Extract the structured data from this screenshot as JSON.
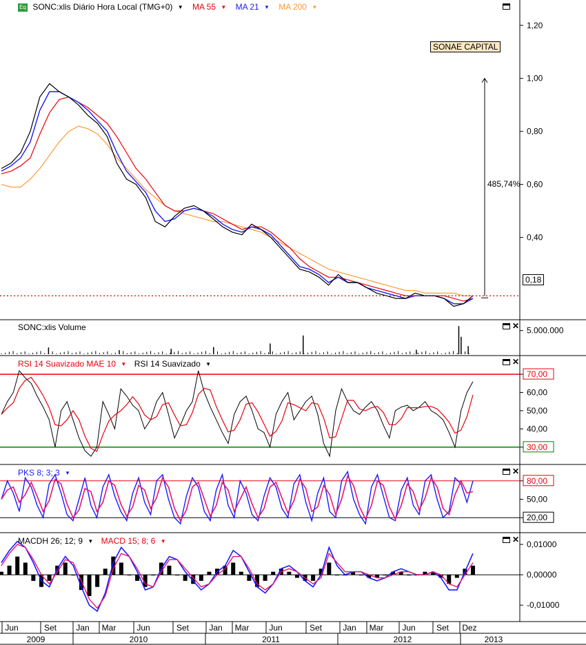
{
  "header": {
    "symbol_label": "SONC:xlis Diário Hora Local (TMG+0)",
    "ma55": "MA 55",
    "ma21": "MA 21",
    "ma200": "MA 200",
    "badge": "Eq"
  },
  "company_tag": "SONAE CAPITAL",
  "price_tag": "0,18",
  "change_label": "485,74%",
  "volume_legend": "SONC:xlis Volume",
  "rsi_legend_1": "RSI 14 Suavizado MAE 10",
  "rsi_legend_2": "RSI 14 Suavizado",
  "stoch_legend": "PKS 8; 3; 3",
  "macd_legend_1": "MACDH 26; 12; 9",
  "macd_legend_2": "MACD 15; 8; 6",
  "colors": {
    "price": "#000000",
    "ma55": "#e8000b",
    "ma21": "#1a1aff",
    "ma200": "#ff9933",
    "rsi_smooth": "#e8000b",
    "upper_line": "#e8000b",
    "lower_line": "#008000",
    "tag_bg": "#ffe9c4"
  },
  "chart_data": {
    "type": "line",
    "x_axis": {
      "months": [
        "Jun",
        "Set",
        "Jan",
        "Mar",
        "Jun",
        "Set",
        "Jan",
        "Mar",
        "Jun",
        "Set",
        "Jan",
        "Mar",
        "Jun",
        "Set",
        "Dez"
      ],
      "years": [
        "2009",
        "2010",
        "2011",
        "2012",
        "2013"
      ]
    },
    "price_panel": {
      "y_ticks": [
        "1,20",
        "1,00",
        "0,80",
        "0,60",
        "0,40"
      ],
      "ylim": [
        0.1,
        1.28
      ],
      "current": 0.18,
      "close": [
        0.66,
        0.68,
        0.72,
        0.8,
        0.93,
        0.98,
        0.95,
        0.93,
        0.9,
        0.86,
        0.83,
        0.78,
        0.68,
        0.62,
        0.6,
        0.55,
        0.46,
        0.44,
        0.48,
        0.51,
        0.52,
        0.5,
        0.47,
        0.44,
        0.42,
        0.41,
        0.45,
        0.43,
        0.4,
        0.36,
        0.32,
        0.28,
        0.27,
        0.25,
        0.22,
        0.26,
        0.23,
        0.23,
        0.21,
        0.19,
        0.18,
        0.17,
        0.17,
        0.19,
        0.18,
        0.18,
        0.17,
        0.14,
        0.15,
        0.18
      ],
      "ma21": [
        0.65,
        0.67,
        0.7,
        0.76,
        0.88,
        0.95,
        0.95,
        0.93,
        0.91,
        0.88,
        0.84,
        0.8,
        0.72,
        0.65,
        0.61,
        0.57,
        0.5,
        0.46,
        0.47,
        0.5,
        0.51,
        0.5,
        0.48,
        0.45,
        0.43,
        0.42,
        0.44,
        0.43,
        0.41,
        0.37,
        0.33,
        0.29,
        0.28,
        0.26,
        0.23,
        0.25,
        0.23,
        0.23,
        0.21,
        0.2,
        0.19,
        0.18,
        0.17,
        0.18,
        0.18,
        0.18,
        0.17,
        0.15,
        0.15,
        0.17
      ],
      "ma55": [
        0.64,
        0.65,
        0.67,
        0.7,
        0.79,
        0.87,
        0.92,
        0.93,
        0.91,
        0.89,
        0.86,
        0.83,
        0.78,
        0.72,
        0.66,
        0.62,
        0.57,
        0.52,
        0.5,
        0.5,
        0.51,
        0.5,
        0.49,
        0.47,
        0.45,
        0.43,
        0.44,
        0.44,
        0.42,
        0.39,
        0.36,
        0.32,
        0.29,
        0.27,
        0.25,
        0.25,
        0.24,
        0.23,
        0.22,
        0.21,
        0.2,
        0.19,
        0.18,
        0.18,
        0.18,
        0.18,
        0.18,
        0.17,
        0.16,
        0.17
      ],
      "ma200": [
        0.6,
        0.59,
        0.59,
        0.62,
        0.66,
        0.71,
        0.76,
        0.8,
        0.82,
        0.81,
        0.79,
        0.75,
        0.7,
        0.66,
        0.62,
        0.58,
        0.55,
        0.52,
        0.5,
        0.49,
        0.48,
        0.47,
        0.46,
        0.46,
        0.45,
        0.44,
        0.43,
        0.42,
        0.4,
        0.38,
        0.36,
        0.34,
        0.32,
        0.3,
        0.28,
        0.27,
        0.26,
        0.25,
        0.24,
        0.23,
        0.22,
        0.21,
        0.2,
        0.2,
        0.19,
        0.19,
        0.19,
        0.19,
        0.18,
        0.18
      ]
    },
    "volume_panel": {
      "y_ticks": [
        "5.000.000"
      ],
      "ylim": [
        0,
        6500000
      ],
      "spikes": [
        [
          0.1,
          1200000
        ],
        [
          0.25,
          600000
        ],
        [
          0.36,
          900000
        ],
        [
          0.45,
          1300000
        ],
        [
          0.57,
          2100000
        ],
        [
          0.64,
          3900000
        ],
        [
          0.88,
          700000
        ],
        [
          0.975,
          3600000
        ],
        [
          0.97,
          6000000
        ],
        [
          0.99,
          1500000
        ]
      ]
    },
    "rsi_panel": {
      "y_ticks": [
        "70,00",
        "60,00",
        "50,00",
        "40,00",
        "30,00"
      ],
      "ylim": [
        22,
        78
      ],
      "upper": 70,
      "lower": 30,
      "values": [
        48,
        55,
        60,
        72,
        68,
        65,
        58,
        52,
        45,
        30,
        50,
        55,
        45,
        35,
        28,
        25,
        30,
        55,
        48,
        40,
        62,
        58,
        53,
        50,
        40,
        45,
        55,
        60,
        48,
        35,
        42,
        50,
        55,
        72,
        60,
        52,
        45,
        38,
        32,
        48,
        55,
        58,
        50,
        40,
        38,
        30,
        48,
        55,
        60,
        45,
        50,
        55,
        58,
        48,
        32,
        25,
        50,
        62,
        55,
        50,
        48,
        52,
        55,
        50,
        42,
        35,
        50,
        52,
        53,
        50,
        52,
        55,
        50,
        48,
        45,
        38,
        30,
        50,
        60,
        66
      ]
    },
    "stoch_panel": {
      "y_ticks": [
        "80,00",
        "50,00",
        "20,00"
      ],
      "ylim": [
        0,
        100
      ],
      "upper": 80,
      "lower": 20,
      "values": [
        50,
        80,
        60,
        30,
        85,
        70,
        40,
        20,
        75,
        90,
        60,
        25,
        15,
        50,
        85,
        40,
        20,
        70,
        90,
        55,
        30,
        15,
        60,
        85,
        45,
        25,
        80,
        90,
        50,
        20,
        10,
        55,
        85,
        70,
        30,
        15,
        65,
        90,
        40,
        20,
        80,
        60,
        25,
        15,
        55,
        85,
        70,
        35,
        20,
        75,
        90,
        45,
        15,
        60,
        85,
        30,
        20,
        80,
        95,
        50,
        25,
        10,
        70,
        90,
        55,
        20,
        15,
        65,
        85,
        40,
        25,
        80,
        90,
        50,
        20,
        30,
        85,
        75,
        45,
        80
      ]
    },
    "macd_panel": {
      "y_ticks": [
        "0,01000",
        "0,00000",
        "-0,01000"
      ],
      "ylim": [
        -0.0145,
        0.0125
      ],
      "macd": [
        0.004,
        0.008,
        0.011,
        0.009,
        0.004,
        -0.002,
        -0.004,
        0.002,
        0.006,
        0.003,
        -0.004,
        -0.01,
        -0.012,
        -0.006,
        0.004,
        0.009,
        0.006,
        0.001,
        -0.005,
        -0.004,
        0.002,
        0.006,
        0.005,
        0.001,
        -0.002,
        -0.005,
        -0.003,
        0.001,
        0.003,
        0.008,
        0.006,
        0.001,
        -0.004,
        -0.006,
        -0.003,
        0.002,
        0.003,
        0.001,
        -0.002,
        -0.004,
        0.0,
        0.009,
        0.003,
        0.0,
        0.001,
        0.001,
        -0.001,
        -0.002,
        -0.001,
        0.001,
        0.002,
        0.001,
        0.0,
        0.0,
        0.001,
        -0.001,
        -0.005,
        -0.005,
        0.001,
        0.007
      ],
      "macd_slow": [
        0.003,
        0.007,
        0.01,
        0.009,
        0.005,
        0.0,
        -0.003,
        0.001,
        0.005,
        0.004,
        -0.002,
        -0.008,
        -0.011,
        -0.007,
        0.002,
        0.007,
        0.006,
        0.002,
        -0.003,
        -0.004,
        0.001,
        0.005,
        0.005,
        0.002,
        -0.001,
        -0.004,
        -0.003,
        0.0,
        0.002,
        0.006,
        0.006,
        0.002,
        -0.003,
        -0.005,
        -0.003,
        0.001,
        0.002,
        0.001,
        -0.001,
        -0.003,
        -0.001,
        0.007,
        0.004,
        0.001,
        0.001,
        0.001,
        0.0,
        -0.001,
        -0.001,
        0.0,
        0.001,
        0.001,
        0.0,
        0.0,
        0.001,
        0.0,
        -0.003,
        -0.004,
        0.0,
        0.004
      ],
      "hist": [
        0.001,
        0.003,
        0.006,
        0.004,
        -0.002,
        -0.004,
        -0.002,
        0.003,
        0.004,
        0.0,
        -0.005,
        -0.007,
        -0.004,
        0.002,
        0.006,
        0.004,
        0.0,
        -0.002,
        -0.004,
        0.0,
        0.004,
        0.003,
        0.0,
        -0.002,
        -0.003,
        -0.002,
        0.001,
        0.002,
        0.003,
        0.004,
        0.001,
        -0.002,
        -0.004,
        -0.002,
        0.001,
        0.002,
        0.001,
        -0.001,
        -0.002,
        -0.002,
        0.002,
        0.004,
        0.0,
        0.0,
        0.001,
        0.0,
        -0.001,
        -0.001,
        0.0,
        0.001,
        0.001,
        0.0,
        0.0,
        0.001,
        0.001,
        -0.001,
        -0.003,
        -0.001,
        0.002,
        0.003
      ]
    }
  }
}
